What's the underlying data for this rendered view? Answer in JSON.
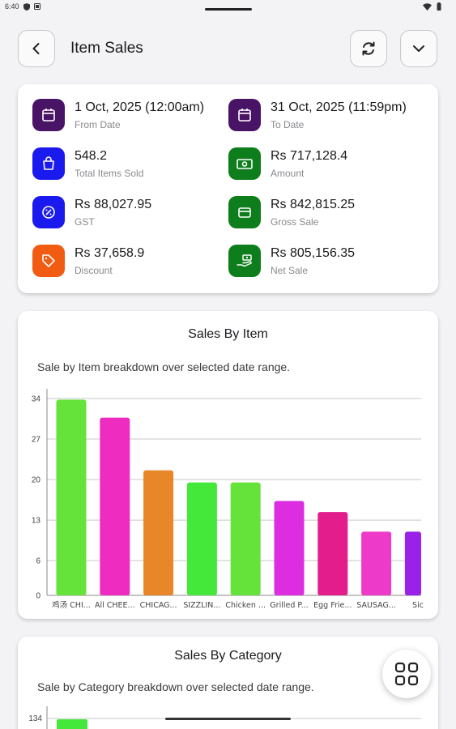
{
  "status_bar": {
    "time": "6:40"
  },
  "header": {
    "title": "Item Sales"
  },
  "summary": [
    {
      "value": "1 Oct, 2025 (12:00am)",
      "label": "From Date",
      "icon": "calendar-icon",
      "color": "#4a1466"
    },
    {
      "value": "31 Oct, 2025 (11:59pm)",
      "label": "To Date",
      "icon": "calendar-icon",
      "color": "#4a1466"
    },
    {
      "value": "548.2",
      "label": "Total Items Sold",
      "icon": "shopping-bag-icon",
      "color": "#1a1aee"
    },
    {
      "value": "Rs 717,128.4",
      "label": "Amount",
      "icon": "cash-icon",
      "color": "#0e7d1c"
    },
    {
      "value": "Rs 88,027.95",
      "label": "GST",
      "icon": "tax-percent-icon",
      "color": "#1a1aee"
    },
    {
      "value": "Rs 842,815.25",
      "label": "Gross Sale",
      "icon": "wallet-icon",
      "color": "#0e7d1c"
    },
    {
      "value": "Rs 37,658.9",
      "label": "Discount",
      "icon": "tag-icon",
      "color": "#f25c12"
    },
    {
      "value": "Rs 805,156.35",
      "label": "Net Sale",
      "icon": "hand-money-icon",
      "color": "#0e7d1c"
    }
  ],
  "sales_by_item": {
    "title": "Sales By Item",
    "subtitle": "Sale by Item breakdown over selected date range."
  },
  "sales_by_category": {
    "title": "Sales By Category",
    "subtitle": "Sale by Category breakdown over selected date range.",
    "first_tick": "134"
  },
  "chart_data": {
    "type": "bar",
    "categories": [
      "鸡汤 CHI...",
      "All CHEE...",
      "CHICAG...",
      "SIZZLIN...",
      "Chicken ...",
      "Grilled P...",
      "Egg Frie...",
      "SAUSAG...",
      "Sic"
    ],
    "values": [
      33.8,
      30.7,
      21.6,
      19.5,
      19.5,
      16.3,
      14.4,
      11.0,
      11.0
    ],
    "colors": [
      "#66e33a",
      "#ee2cc0",
      "#e8862a",
      "#44e83a",
      "#66e33a",
      "#dc2ee0",
      "#e31e8c",
      "#ee3ac8",
      "#9a22e8"
    ],
    "yticks": [
      "0",
      "6",
      "13",
      "20",
      "27",
      "34"
    ],
    "ylim": [
      0,
      34
    ]
  }
}
